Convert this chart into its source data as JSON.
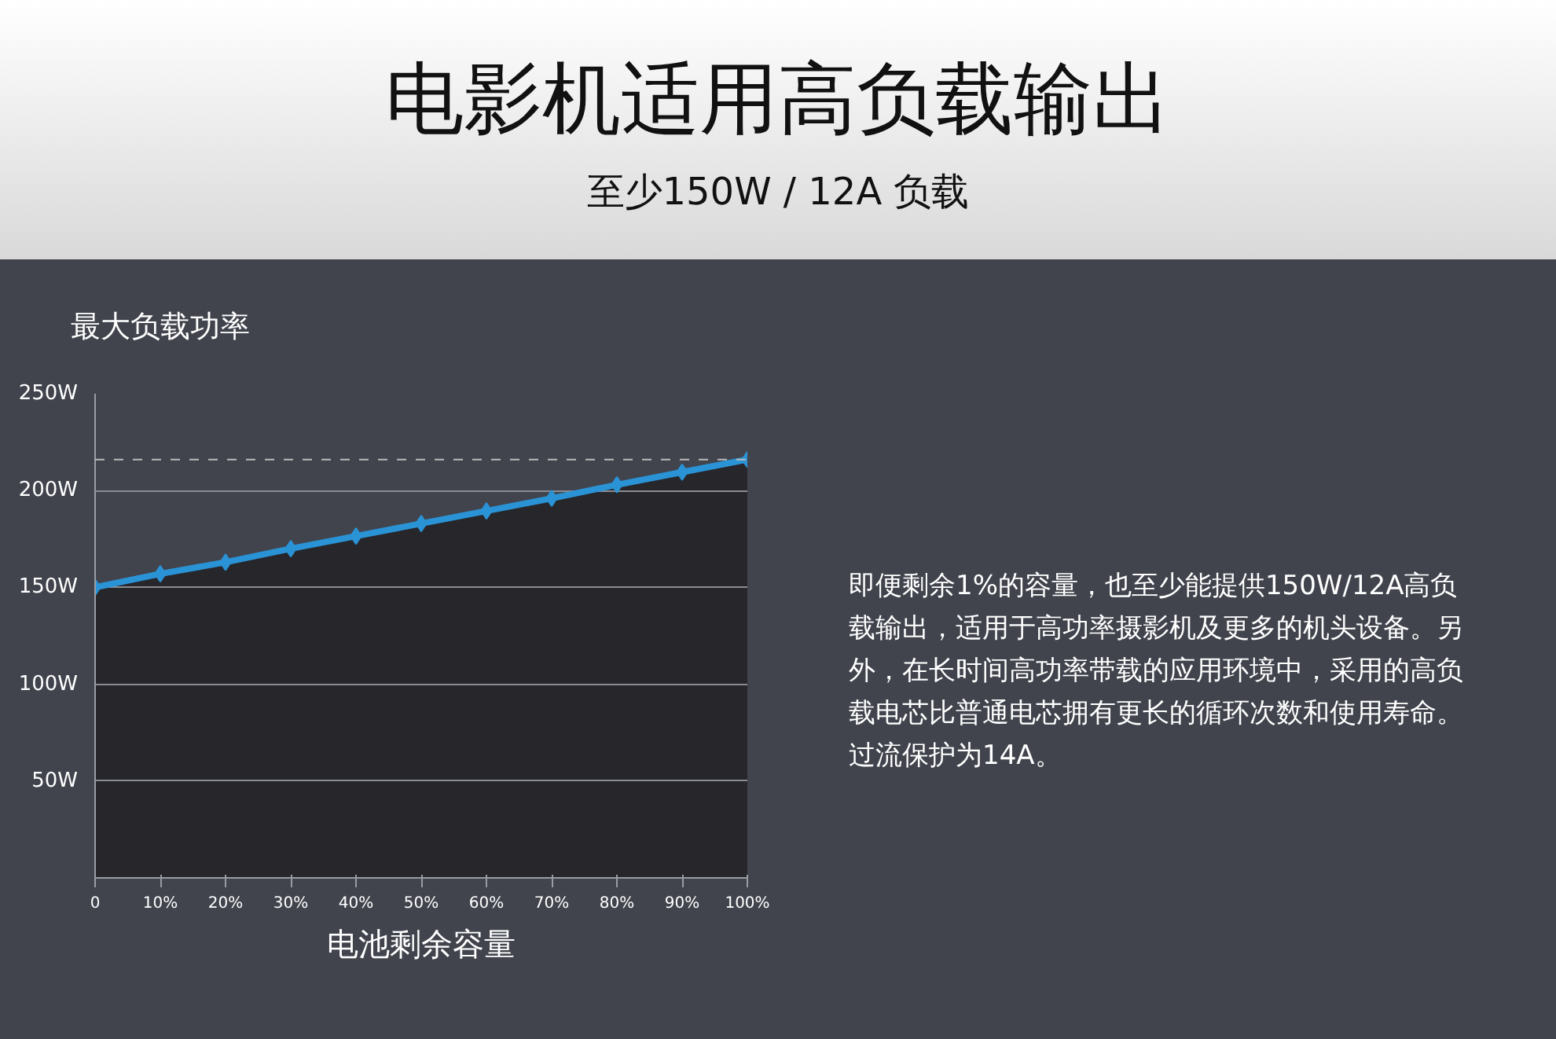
{
  "chart_data": {
    "type": "area",
    "title": "电影机适用高负载输出",
    "subtitle": "至少150W / 12A 负载",
    "ylabel": "最大负载功率",
    "xlabel": "电池剩余容量",
    "annotations": [
      "即便剩余1%的容量，也至少能提供150W/12A高负载输出，适用于高功率摄影机及更多的机头设备。另外，在长时间高功率带载的应用环境中，采用的高负载电芯比普通电芯拥有更长的循环次数和使用寿命。过流保护为14A。"
    ],
    "x": [
      0,
      10,
      20,
      30,
      40,
      50,
      60,
      70,
      80,
      90,
      100
    ],
    "series": [
      {
        "color": "#2a93d5",
        "values": [
          150,
          157,
          163,
          170,
          176.5,
          183,
          189.5,
          196,
          203,
          209.5,
          216
        ]
      }
    ],
    "xlim": [
      0,
      100
    ],
    "xticks": [
      0,
      {
        "value": 10,
        "label": "10%"
      },
      {
        "value": 20,
        "label": "20%"
      },
      {
        "value": 30,
        "label": "30%"
      },
      {
        "value": 40,
        "label": "40%"
      },
      {
        "value": 50,
        "label": "50%"
      },
      {
        "value": 60,
        "label": "60%"
      },
      {
        "value": 70,
        "label": "70%"
      },
      {
        "value": 80,
        "label": "80%"
      },
      {
        "value": 90,
        "label": "90%"
      },
      {
        "value": 100,
        "label": "100%"
      }
    ],
    "ylim": [
      0,
      250
    ],
    "yticks": [
      {
        "value": 50,
        "label": "50W"
      },
      {
        "value": 100,
        "label": "100W"
      },
      {
        "value": 150,
        "label": "150W"
      },
      {
        "value": 200,
        "label": "200W"
      },
      {
        "value": 250,
        "label": "250W"
      }
    ],
    "ref_lines": [
      {
        "axis": "y",
        "value": 216,
        "color": "#bbbbbb",
        "line_style": "dashed"
      }
    ],
    "grid": "y",
    "marker": "diamond",
    "line_style": "solid"
  }
}
